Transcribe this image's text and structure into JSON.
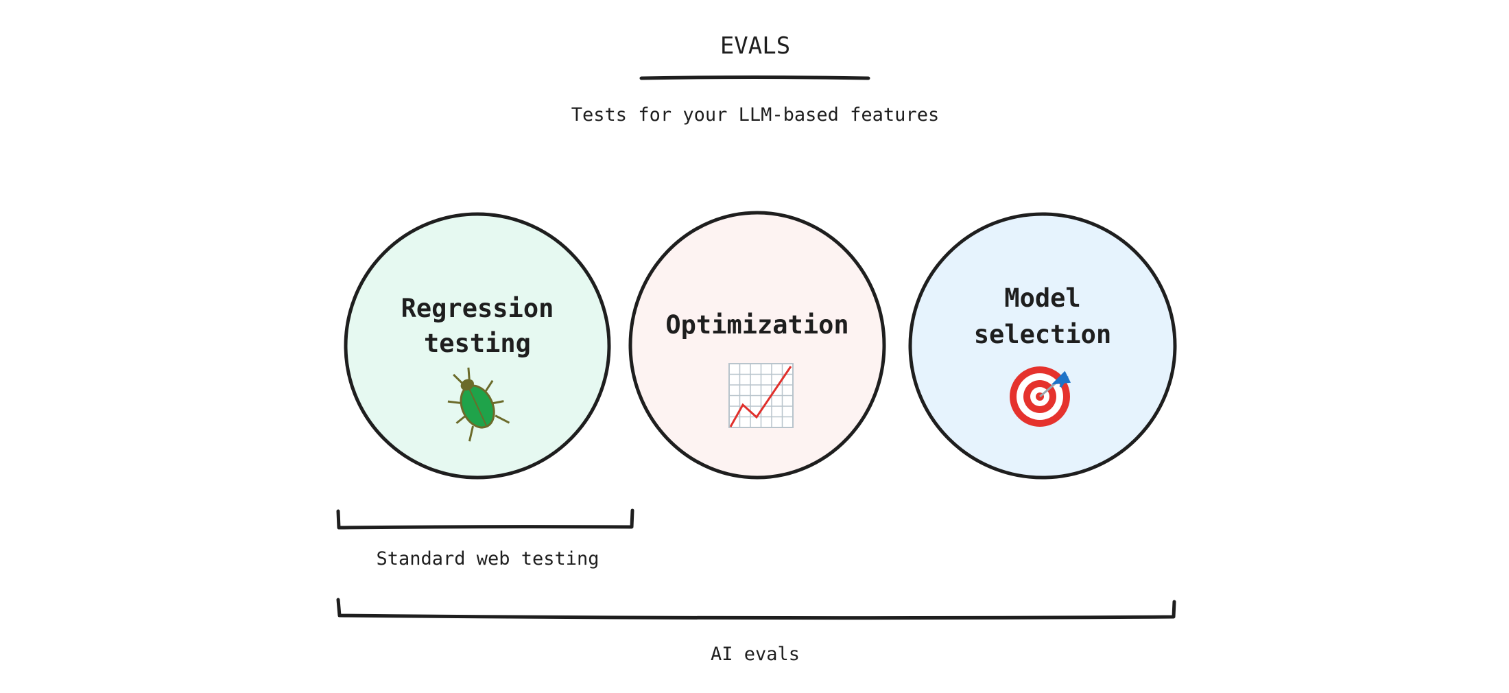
{
  "title": "EVALS",
  "subtitle": "Tests for your LLM-based features",
  "circles": [
    {
      "line1": "Regression",
      "line2": "testing",
      "icon": "beetle-icon",
      "fill": "#e6f9f1"
    },
    {
      "line1": "Optimization",
      "icon": "chart-increasing-icon",
      "fill": "#fdf3f2"
    },
    {
      "line1": "Model",
      "line2": "selection",
      "icon": "direct-hit-target-icon",
      "fill": "#e6f3fd"
    }
  ],
  "brackets": [
    {
      "label": "Standard web testing"
    },
    {
      "label": "AI evals"
    }
  ],
  "colors": {
    "stroke": "#1e1e1e",
    "background": "#ffffff"
  }
}
